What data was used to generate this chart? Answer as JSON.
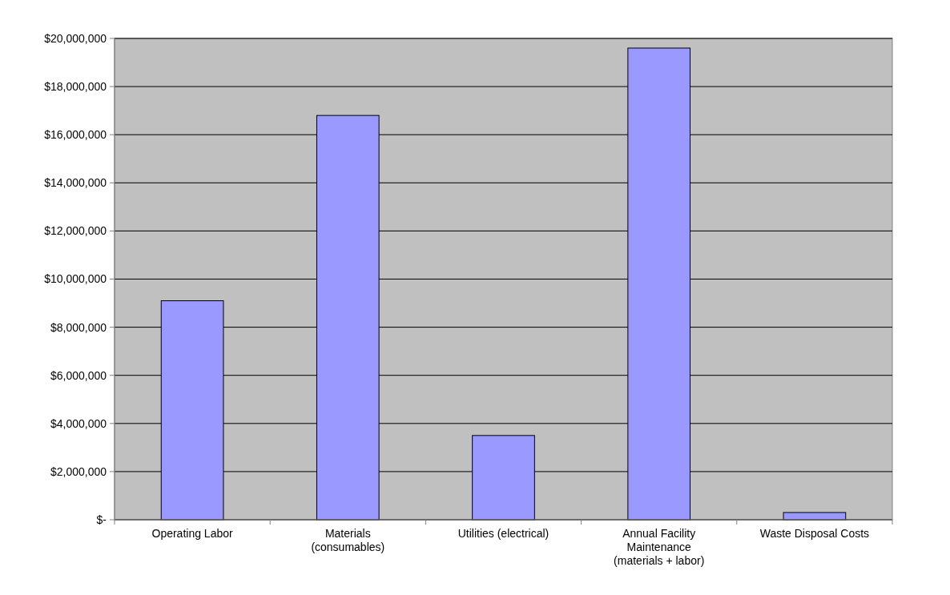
{
  "chart_data": {
    "type": "bar",
    "categories": [
      "Operating Labor",
      "Materials\n(consumables)",
      "Utilities (electrical)",
      "Annual Facility\nMaintenance\n(materials + labor)",
      "Waste Disposal Costs"
    ],
    "values": [
      9100000,
      16800000,
      3500000,
      19600000,
      300000
    ],
    "color": "#9999ff",
    "ylim": [
      0,
      20000000
    ],
    "yticks": [
      {
        "value": 0,
        "label": "$-"
      },
      {
        "value": 2000000,
        "label": "$2,000,000"
      },
      {
        "value": 4000000,
        "label": "$4,000,000"
      },
      {
        "value": 6000000,
        "label": "$6,000,000"
      },
      {
        "value": 8000000,
        "label": "$8,000,000"
      },
      {
        "value": 10000000,
        "label": "$10,000,000"
      },
      {
        "value": 12000000,
        "label": "$12,000,000"
      },
      {
        "value": 14000000,
        "label": "$14,000,000"
      },
      {
        "value": 16000000,
        "label": "$16,000,000"
      },
      {
        "value": 18000000,
        "label": "$18,000,000"
      },
      {
        "value": 20000000,
        "label": "$20,000,000"
      }
    ],
    "grid": "y"
  }
}
